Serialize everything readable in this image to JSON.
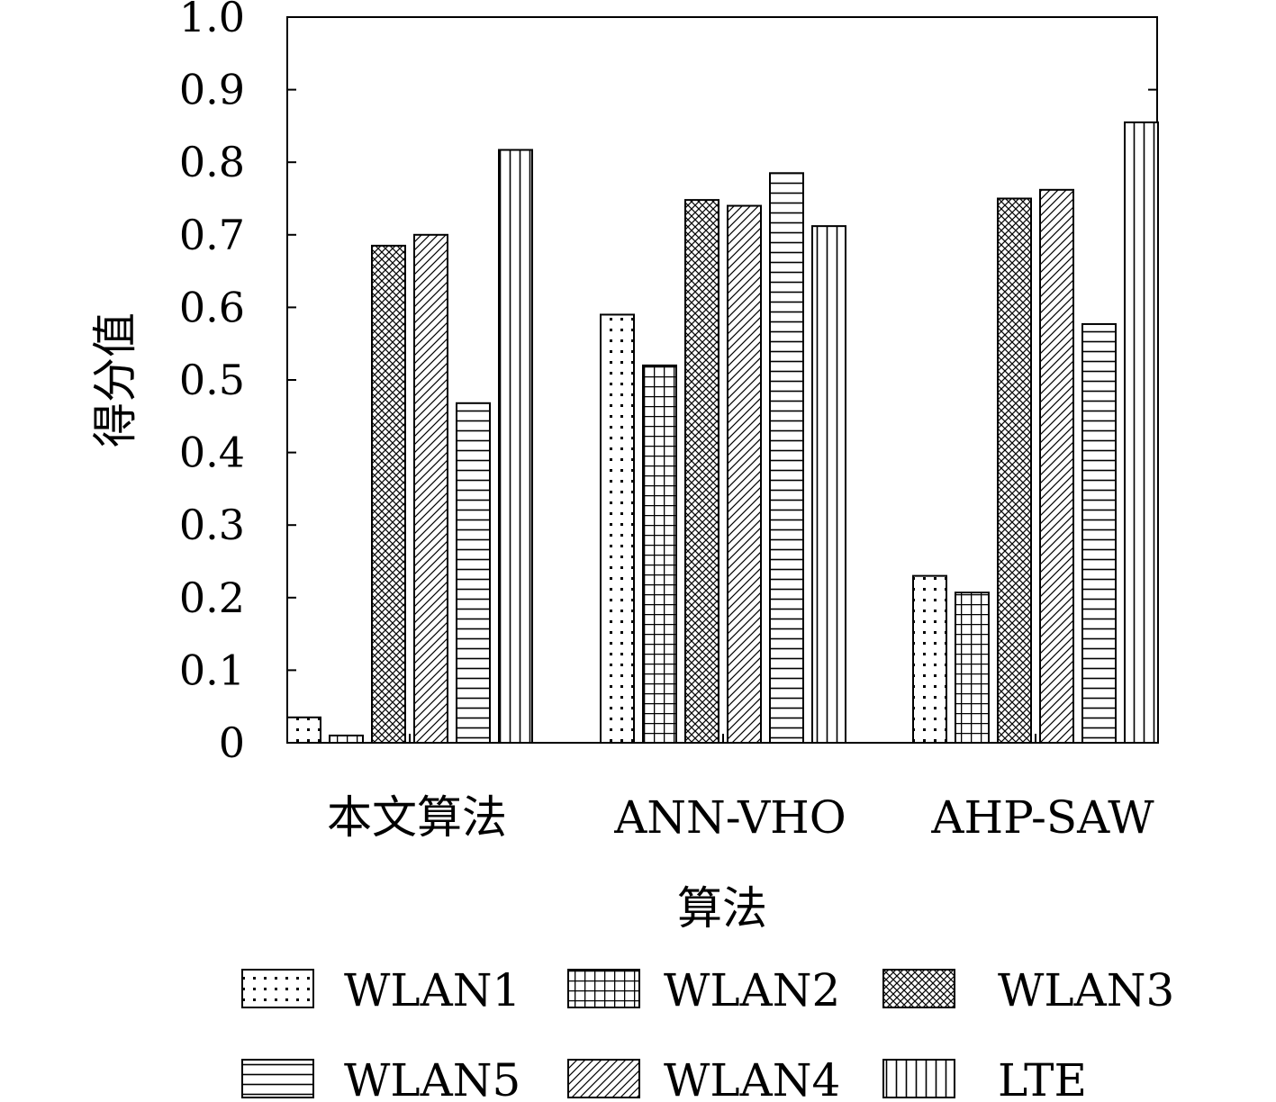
{
  "chart_data": {
    "type": "bar",
    "title": "",
    "xlabel": "算法",
    "ylabel": "得分值",
    "ylim": [
      0,
      1.0
    ],
    "yticks": [
      "0",
      "0.1",
      "0.2",
      "0.3",
      "0.4",
      "0.5",
      "0.6",
      "0.7",
      "0.8",
      "0.9",
      "1.0"
    ],
    "categories": [
      "本文算法",
      "ANN-VHO",
      "AHP-SAW"
    ],
    "series": [
      {
        "name": "WLAN1",
        "pattern": "dots",
        "values": [
          0.035,
          0.59,
          0.23
        ]
      },
      {
        "name": "WLAN2",
        "pattern": "grid",
        "values": [
          0.01,
          0.52,
          0.207
        ]
      },
      {
        "name": "WLAN3",
        "pattern": "crosshatch",
        "values": [
          0.685,
          0.748,
          0.75
        ]
      },
      {
        "name": "WLAN4",
        "pattern": "diagonal",
        "values": [
          0.7,
          0.74,
          0.762
        ]
      },
      {
        "name": "WLAN5",
        "pattern": "horizontal",
        "values": [
          0.468,
          0.785,
          0.577
        ]
      },
      {
        "name": "LTE",
        "pattern": "vertical",
        "values": [
          0.817,
          0.712,
          0.855
        ]
      }
    ],
    "legend": {
      "placement": "bottom",
      "order": [
        "WLAN1",
        "WLAN2",
        "WLAN3",
        "WLAN5",
        "WLAN4",
        "LTE"
      ]
    },
    "grid": false
  }
}
